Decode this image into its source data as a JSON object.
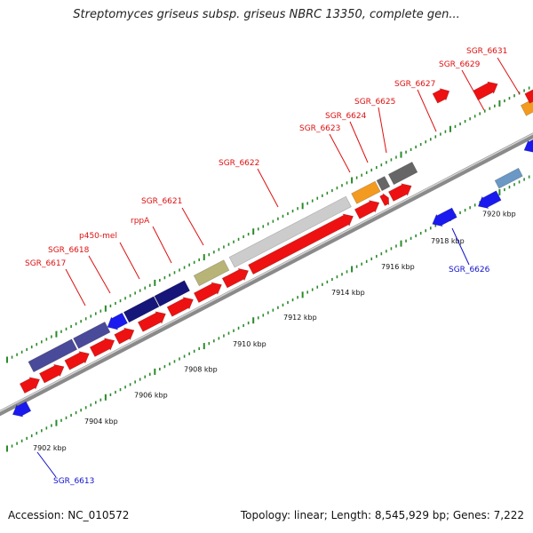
{
  "title": "Streptomyces griseus subsp. griseus NBRC 13350, complete gen...",
  "footer": {
    "accession": "Accession: NC_010572",
    "summary": "Topology: linear; Length: 8,545,929 bp; Genes: 7,222"
  },
  "colors": {
    "gene_red": "#ee1111",
    "label_red": "#dd1111",
    "label_blue": "#1111cc",
    "tick_green": "#2a8a2a",
    "backbone": "#8a8a8a",
    "gene_blue": "#1a1aee",
    "navy": "#15157a",
    "slate_purple": "#4a4a9a",
    "olive": "#b8b478",
    "light_grey": "#cccccc",
    "orange": "#f39a20",
    "dark_grey": "#666666",
    "steel_blue": "#6b98c4"
  },
  "scale_labels": [
    "7902 kbp",
    "7904 kbp",
    "7906 kbp",
    "7908 kbp",
    "7910 kbp",
    "7912 kbp",
    "7914 kbp",
    "7916 kbp",
    "7918 kbp",
    "7920 kbp"
  ],
  "gene_labels": [
    {
      "text": "SGR_6617",
      "color": "red"
    },
    {
      "text": "SGR_6618",
      "color": "red"
    },
    {
      "text": "p450-mel",
      "color": "red"
    },
    {
      "text": "rppA",
      "color": "red"
    },
    {
      "text": "SGR_6621",
      "color": "red"
    },
    {
      "text": "SGR_6622",
      "color": "red"
    },
    {
      "text": "SGR_6623",
      "color": "red"
    },
    {
      "text": "SGR_6624",
      "color": "red"
    },
    {
      "text": "SGR_6625",
      "color": "red"
    },
    {
      "text": "SGR_6627",
      "color": "red"
    },
    {
      "text": "SGR_6629",
      "color": "red"
    },
    {
      "text": "SGR_6631",
      "color": "red"
    },
    {
      "text": "SGR_6626",
      "color": "blue"
    },
    {
      "text": "SGR_6613",
      "color": "blue"
    }
  ]
}
